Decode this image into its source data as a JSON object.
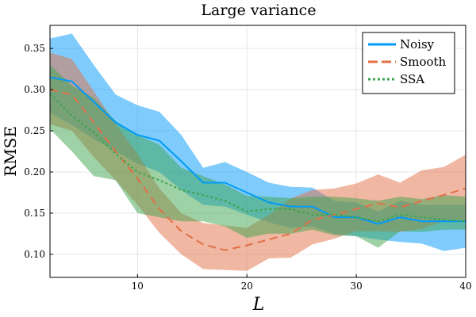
{
  "chart_data": {
    "type": "line",
    "title": "Large variance",
    "xlabel": "L",
    "ylabel": "RMSE",
    "xlim": [
      2,
      40
    ],
    "ylim": [
      0.072,
      0.378
    ],
    "xticks": [
      10,
      20,
      30,
      40
    ],
    "yticks": [
      0.1,
      0.15,
      0.2,
      0.25,
      0.3,
      0.35
    ],
    "ytick_labels": [
      "0.10",
      "0.15",
      "0.20",
      "0.25",
      "0.30",
      "0.35"
    ],
    "grid": true,
    "legend_position": "top-right",
    "x": [
      2,
      4,
      6,
      8,
      10,
      12,
      14,
      16,
      18,
      20,
      22,
      24,
      26,
      28,
      30,
      32,
      34,
      36,
      38,
      40
    ],
    "series": [
      {
        "name": "Noisy",
        "color": "#009af9",
        "style": "solid",
        "values": [
          0.315,
          0.31,
          0.285,
          0.26,
          0.245,
          0.238,
          0.213,
          0.187,
          0.187,
          0.175,
          0.163,
          0.158,
          0.158,
          0.145,
          0.145,
          0.137,
          0.145,
          0.14,
          0.14,
          0.14
        ],
        "upper": [
          0.362,
          0.368,
          0.33,
          0.294,
          0.281,
          0.273,
          0.245,
          0.205,
          0.212,
          0.2,
          0.187,
          0.182,
          0.181,
          0.165,
          0.163,
          0.152,
          0.165,
          0.16,
          0.16,
          0.16
        ],
        "lower": [
          0.272,
          0.257,
          0.24,
          0.225,
          0.21,
          0.2,
          0.178,
          0.16,
          0.158,
          0.148,
          0.139,
          0.132,
          0.134,
          0.125,
          0.122,
          0.118,
          0.115,
          0.113,
          0.104,
          0.108
        ]
      },
      {
        "name": "Smooth",
        "color": "#e26f46",
        "style": "dashed",
        "values": [
          0.3,
          0.294,
          0.26,
          0.225,
          0.192,
          0.155,
          0.128,
          0.112,
          0.105,
          0.111,
          0.118,
          0.125,
          0.142,
          0.148,
          0.155,
          0.162,
          0.157,
          0.165,
          0.172,
          0.18
        ],
        "upper": [
          0.345,
          0.337,
          0.298,
          0.258,
          0.222,
          0.18,
          0.15,
          0.138,
          0.135,
          0.132,
          0.148,
          0.168,
          0.178,
          0.18,
          0.186,
          0.197,
          0.187,
          0.202,
          0.206,
          0.221
        ],
        "lower": [
          0.258,
          0.25,
          0.218,
          0.19,
          0.16,
          0.126,
          0.1,
          0.082,
          0.081,
          0.08,
          0.095,
          0.096,
          0.112,
          0.119,
          0.128,
          0.128,
          0.127,
          0.131,
          0.14,
          0.14
        ]
      },
      {
        "name": "SSA",
        "color": "#3da44d",
        "style": "dotted",
        "values": [
          0.295,
          0.268,
          0.248,
          0.222,
          0.2,
          0.19,
          0.178,
          0.172,
          0.165,
          0.152,
          0.155,
          0.155,
          0.148,
          0.148,
          0.145,
          0.14,
          0.148,
          0.145,
          0.142,
          0.14
        ],
        "upper": [
          0.33,
          0.305,
          0.29,
          0.262,
          0.245,
          0.233,
          0.205,
          0.195,
          0.185,
          0.171,
          0.17,
          0.168,
          0.17,
          0.17,
          0.168,
          0.165,
          0.17,
          0.167,
          0.172,
          0.17
        ],
        "lower": [
          0.252,
          0.225,
          0.195,
          0.19,
          0.15,
          0.145,
          0.14,
          0.14,
          0.134,
          0.12,
          0.125,
          0.125,
          0.13,
          0.123,
          0.122,
          0.108,
          0.128,
          0.127,
          0.13,
          0.13
        ]
      }
    ]
  }
}
